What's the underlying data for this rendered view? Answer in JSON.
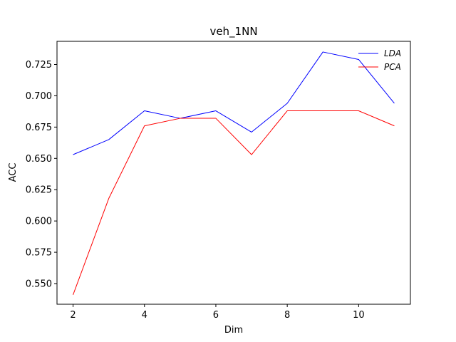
{
  "chart_data": {
    "type": "line",
    "title": "veh_1NN",
    "xlabel": "Dim",
    "ylabel": "ACC",
    "xlim": [
      1.55,
      11.45
    ],
    "ylim": [
      0.5335,
      0.7435
    ],
    "xticks": [
      2,
      4,
      6,
      8,
      10
    ],
    "yticks": [
      0.55,
      0.575,
      0.6,
      0.625,
      0.65,
      0.675,
      0.7,
      0.725
    ],
    "ytick_labels": [
      "0.550",
      "0.575",
      "0.600",
      "0.625",
      "0.650",
      "0.675",
      "0.700",
      "0.725"
    ],
    "xtick_labels": [
      "2",
      "4",
      "6",
      "8",
      "10"
    ],
    "grid": false,
    "legend_position": "top-right",
    "x": [
      2,
      3,
      4,
      5,
      6,
      7,
      8,
      9,
      10,
      11
    ],
    "series": [
      {
        "name": "LDA",
        "color": "#0000ff",
        "values": [
          0.653,
          0.665,
          0.688,
          0.682,
          0.688,
          0.671,
          0.694,
          0.735,
          0.729,
          0.694
        ]
      },
      {
        "name": "PCA",
        "color": "#ff0000",
        "values": [
          0.541,
          0.618,
          0.676,
          0.682,
          0.682,
          0.653,
          0.688,
          0.688,
          0.688,
          0.676
        ]
      }
    ]
  }
}
